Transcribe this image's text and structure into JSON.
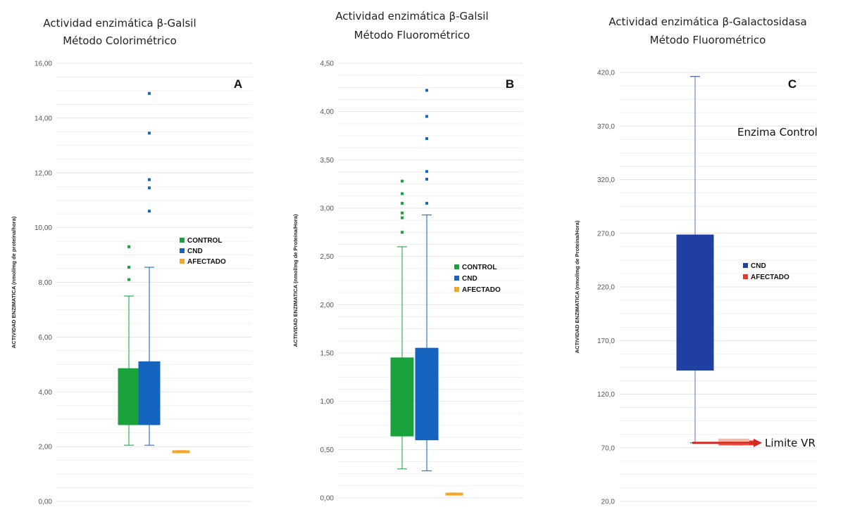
{
  "chart_data": [
    {
      "type": "box",
      "panel_label": "A",
      "title": "Actividad enzimática β-Galsil",
      "subtitle": "Método Colorimétrico",
      "ylabel": "ACTIVIDAD ENZIMATICA (nmol/mg de proteína/hora)",
      "ylim": [
        0,
        16
      ],
      "yticks": [
        "0,00",
        "2,00",
        "4,00",
        "6,00",
        "8,00",
        "10,00",
        "12,00",
        "14,00",
        "16,00"
      ],
      "legend": [
        "CONTROL",
        "CND",
        "AFECTADO"
      ],
      "grid": true,
      "series": [
        {
          "name": "CONTROL",
          "color": "#1aa33d",
          "whisker_low": 2.05,
          "q1": 2.8,
          "q3": 4.85,
          "whisker_high": 7.5,
          "outliers": [
            8.1,
            8.55,
            9.3
          ]
        },
        {
          "name": "CND",
          "color": "#1565c0",
          "whisker_low": 2.05,
          "q1": 2.8,
          "q3": 5.1,
          "whisker_high": 8.55,
          "outliers": [
            10.6,
            11.45,
            11.75,
            13.45,
            14.9
          ]
        },
        {
          "name": "AFECTADO",
          "color": "#f5a623",
          "whisker_low": 1.85,
          "q1": 1.85,
          "q3": 1.85,
          "whisker_high": 1.85,
          "outliers": []
        }
      ]
    },
    {
      "type": "box",
      "panel_label": "B",
      "title": "Actividad enzimática β-Galsil",
      "subtitle": "Método Fluorométrico",
      "ylabel": "ACTIVIDAD ENZIMATICA (nmol/mg de Proteína/Hora)",
      "ylim": [
        0,
        4.5
      ],
      "yticks": [
        "0,00",
        "0,50",
        "1,00",
        "1,50",
        "2,00",
        "2,50",
        "3,00",
        "3,50",
        "4,00",
        "4,50"
      ],
      "legend": [
        "CONTROL",
        "CND",
        "AFECTADO"
      ],
      "grid": true,
      "series": [
        {
          "name": "CONTROL",
          "color": "#1aa33d",
          "whisker_low": 0.3,
          "q1": 0.64,
          "q3": 1.45,
          "whisker_high": 2.6,
          "outliers": [
            2.75,
            2.9,
            2.95,
            3.05,
            3.15,
            3.28
          ]
        },
        {
          "name": "CND",
          "color": "#1565c0",
          "whisker_low": 0.28,
          "q1": 0.6,
          "q3": 1.55,
          "whisker_high": 2.93,
          "outliers": [
            3.05,
            3.3,
            3.38,
            3.72,
            3.95,
            4.22
          ]
        },
        {
          "name": "AFECTADO",
          "color": "#f5a623",
          "whisker_low": 0.03,
          "q1": 0.03,
          "q3": 0.05,
          "whisker_high": 0.05,
          "outliers": []
        }
      ]
    },
    {
      "type": "box",
      "panel_label": "C",
      "title": "Actividad enzimática β-Galactosidasa",
      "subtitle": "Método Fluorométrico",
      "ylabel": "ACTIVIDAD ENZIMATICA (nmol/mg de Proteína/Hora)",
      "ylim": [
        20,
        445
      ],
      "yticks": [
        "20,0",
        "70,0",
        "120,0",
        "170,0",
        "220,0",
        "270,0",
        "320,0",
        "370,0",
        "420,0"
      ],
      "legend": [
        "CND",
        "AFECTADO"
      ],
      "grid": true,
      "series": [
        {
          "name": "CND",
          "color": "#1f3fa3",
          "whisker_low": 78,
          "q1": 150,
          "q3": 284,
          "whisker_high": 441,
          "outliers": []
        },
        {
          "name": "AFECTADO",
          "color": "#e8382b",
          "whisker_low": 76,
          "q1": 76,
          "q3": 80,
          "whisker_high": 80,
          "outliers": []
        }
      ],
      "annotations": [
        "Enzima Control",
        "Limite VR"
      ]
    }
  ]
}
